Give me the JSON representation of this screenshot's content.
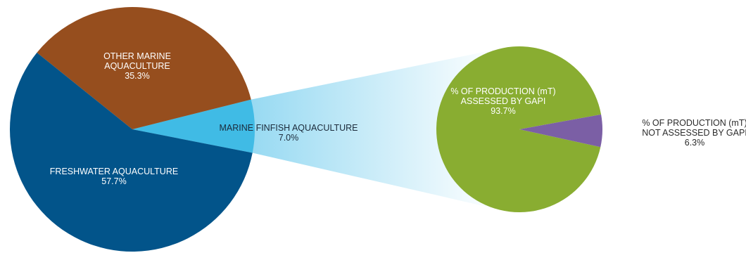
{
  "colors": {
    "freshwater": "#02548a",
    "other_marine": "#964e1e",
    "marine_finfish": "#40bbe5",
    "assessed": "#89ad31",
    "not_assessed": "#7b5fa5",
    "connector_start": "#66c8ec",
    "connector_end": "#ffffff"
  },
  "chart_data": [
    {
      "type": "pie",
      "title": "",
      "slices": [
        {
          "key": "freshwater",
          "label_lines": [
            "FRESHWATER AQUACULTURE"
          ],
          "value_label": "57.7%",
          "value": 57.7,
          "color": "#02548a"
        },
        {
          "key": "marine_finfish",
          "label_lines": [
            "MARINE FINFISH AQUACULTURE"
          ],
          "value_label": "7.0%",
          "value": 7.0,
          "color": "#40bbe5"
        },
        {
          "key": "other_marine",
          "label_lines": [
            "OTHER MARINE",
            "AQUACULTURE"
          ],
          "value_label": "35.3%",
          "value": 35.3,
          "color": "#964e1e"
        }
      ]
    },
    {
      "type": "pie",
      "title": "",
      "breakdown_of": "marine_finfish",
      "slices": [
        {
          "key": "assessed",
          "label_lines": [
            "% OF PRODUCTION (mT)",
            "ASSESSED BY GAPI"
          ],
          "value_label": "93.7%",
          "value": 93.7,
          "color": "#89ad31"
        },
        {
          "key": "not_assessed",
          "label_lines": [
            "% OF PRODUCTION (mT)",
            "NOT ASSESSED BY GAPI"
          ],
          "value_label": "6.3%",
          "value": 6.3,
          "color": "#7b5fa5"
        }
      ]
    }
  ]
}
